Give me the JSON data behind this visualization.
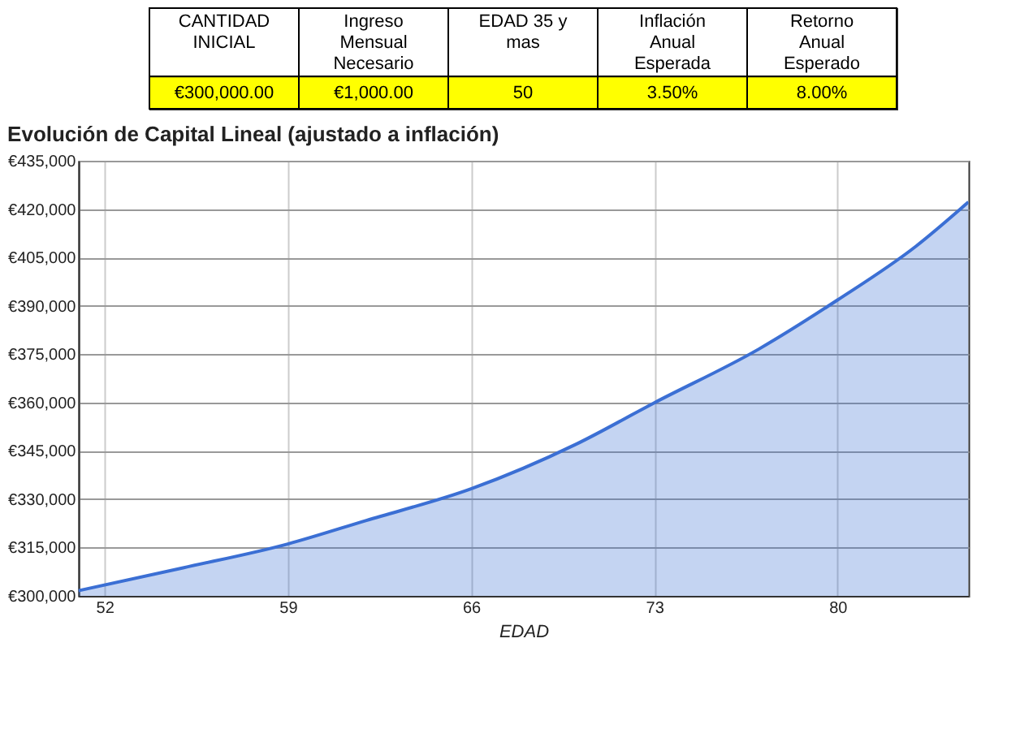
{
  "chart_data": {
    "type": "area",
    "title": "Evolución de Capital Lineal (ajustado a inflación)",
    "xlabel": "EDAD",
    "annotations": [
      "CANTIDAD\nINICIAL",
      "Ingreso\nMensual\nNecesario",
      "EDAD 35 y\nmas",
      "Inflación\nAnual\nEsperada",
      "Retorno\nAnual\nEsperado",
      "€300,000.00",
      "€1,000.00",
      "50",
      "3.50%",
      "8.00%"
    ],
    "x": [
      51,
      55,
      59,
      62,
      66,
      70,
      73,
      77,
      80,
      83,
      85
    ],
    "series": [
      {
        "color": "#3b6fd4",
        "values": [
          301600,
          308700,
          316100,
          323400,
          333200,
          347000,
          359900,
          376600,
          391800,
          408500,
          422200
        ]
      }
    ],
    "xlim": [
      51,
      85
    ],
    "xticks": [
      52,
      59,
      66,
      73,
      80
    ],
    "ylim": [
      300000,
      435000
    ],
    "yticks": [
      {
        "value": 300000,
        "label": "€300,000"
      },
      {
        "value": 315000,
        "label": "€315,000"
      },
      {
        "value": 330000,
        "label": "€330,000"
      },
      {
        "value": 345000,
        "label": "€345,000"
      },
      {
        "value": 360000,
        "label": "€360,000"
      },
      {
        "value": 375000,
        "label": "€375,000"
      },
      {
        "value": 390000,
        "label": "€390,000"
      },
      {
        "value": 405000,
        "label": "€405,000"
      },
      {
        "value": 420000,
        "label": "€420,000"
      },
      {
        "value": 435000,
        "label": "€435,000"
      }
    ],
    "grid": true
  }
}
